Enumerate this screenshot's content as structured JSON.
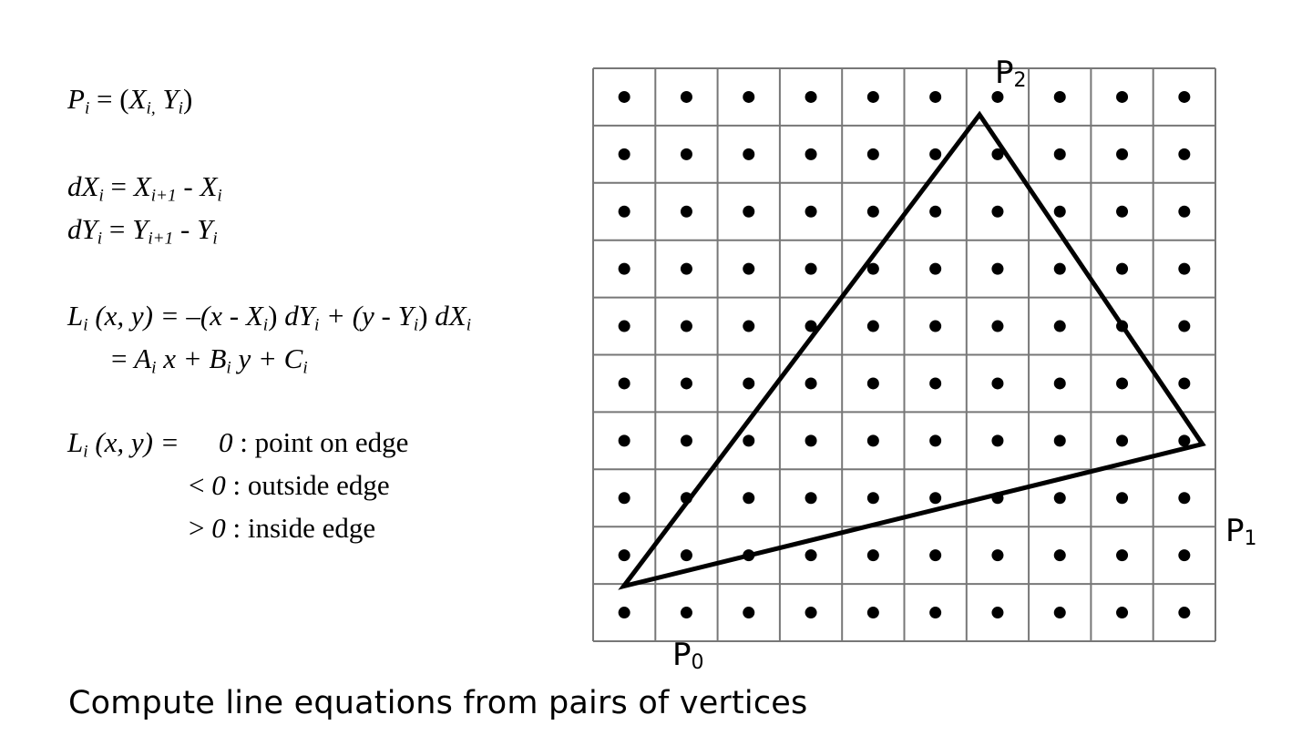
{
  "equations": {
    "p_def": {
      "lhs": "P",
      "lhs_sub": "i",
      "eq": " = (",
      "x": "X",
      "x_sub": "i,",
      "y": "Y",
      "y_sub": "i",
      "close": ")"
    },
    "dx": {
      "d": "dX",
      "d_sub": "i",
      "eq": " = ",
      "a": "X",
      "a_sub": "i+1",
      "minus": " - ",
      "b": "X",
      "b_sub": "i"
    },
    "dy": {
      "d": "dY",
      "d_sub": "i",
      "eq": " = ",
      "a": "Y",
      "a_sub": "i+1",
      "minus": " - ",
      "b": "Y",
      "b_sub": "i"
    },
    "line1": {
      "L": "L",
      "L_sub": "i",
      "args": " (x, y) ",
      "eq": " = –(x - ",
      "X": "X",
      "X_sub": "i",
      "p1": ") ",
      "dY": "dY",
      "dY_sub": "i",
      "plus": "  + (y - ",
      "Y": "Y",
      "Y_sub": "i",
      "p2": ") ",
      "dX": "dX",
      "dX_sub": "i"
    },
    "line2": {
      "eq": "= ",
      "A": "A",
      "A_sub": "i",
      "x": " x + ",
      "B": "B",
      "B_sub": "i",
      "y": " y + ",
      "C": "C",
      "C_sub": "i"
    },
    "cases": {
      "L": "L",
      "L_sub": "i",
      "args": " (x, y) = ",
      "rows": [
        {
          "rel": "",
          "val": "0",
          "desc": " : point on edge"
        },
        {
          "rel": "< ",
          "val": "0",
          "desc": " : outside edge"
        },
        {
          "rel": "> ",
          "val": "0",
          "desc": " : inside edge"
        }
      ]
    }
  },
  "grid": {
    "cols": 10,
    "rows": 10
  },
  "vertices": [
    {
      "name": "P",
      "sub": "0",
      "col": 0.49,
      "row": 9.04
    },
    {
      "name": "P",
      "sub": "1",
      "col": 9.79,
      "row": 6.56
    },
    {
      "name": "P",
      "sub": "2",
      "col": 6.21,
      "row": 0.81
    }
  ],
  "caption": "Compute line equations from pairs of vertices"
}
